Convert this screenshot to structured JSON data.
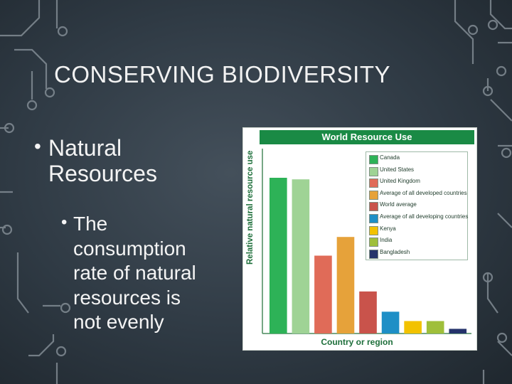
{
  "slide": {
    "title": "CONSERVING BIODIVERSITY",
    "bullet1": "Natural Resources",
    "bullet2_lines": [
      "The",
      "consumption",
      "rate of natural",
      "resources is",
      "not evenly"
    ]
  },
  "colors": {
    "background": "#34404a",
    "circuit": "#9aa4ab",
    "chart_header": "#1a8a45"
  },
  "chart_data": {
    "type": "bar",
    "title": "World Resource Use",
    "xlabel": "Country or region",
    "ylabel": "Relative natural resource use",
    "ylim": [
      0,
      100
    ],
    "grid": false,
    "legend_position": "top-right",
    "categories": [
      "Canada",
      "United States",
      "United Kingdom",
      "Average of all developed countries",
      "World average",
      "Average of all developing countries",
      "Kenya",
      "India",
      "Bangladesh"
    ],
    "values": [
      100,
      99,
      50,
      62,
      27,
      14,
      8,
      8,
      3
    ],
    "colors": [
      "#2db257",
      "#9fd395",
      "#e06b58",
      "#e6a23a",
      "#c9534b",
      "#1e8fc6",
      "#f2c200",
      "#9fbf3a",
      "#25336b"
    ]
  }
}
